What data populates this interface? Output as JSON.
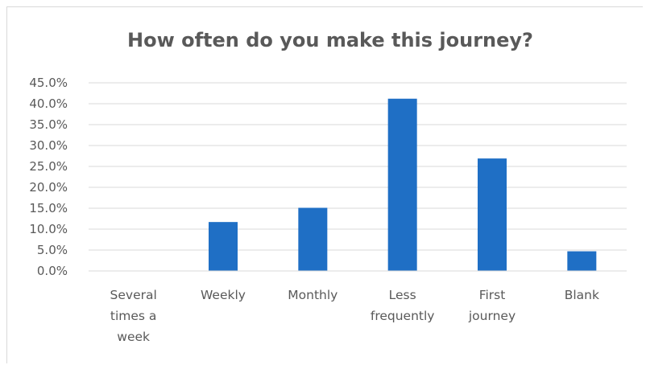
{
  "chart_data": {
    "type": "bar",
    "title": "How often do you make this journey?",
    "categories": [
      [
        "Several",
        "times a",
        "week"
      ],
      [
        "Weekly"
      ],
      [
        "Monthly"
      ],
      [
        "Less",
        "frequently"
      ],
      [
        "First",
        "journey"
      ],
      [
        "Blank"
      ]
    ],
    "values": [
      0.0,
      11.7,
      15.1,
      41.2,
      26.9,
      4.7
    ],
    "ylim": [
      0,
      45
    ],
    "yticks": [
      "0.0%",
      "5.0%",
      "10.0%",
      "15.0%",
      "20.0%",
      "25.0%",
      "30.0%",
      "35.0%",
      "40.0%",
      "45.0%"
    ],
    "ytick_values": [
      0,
      5,
      10,
      15,
      20,
      25,
      30,
      35,
      40,
      45
    ],
    "grid": true,
    "legend": "none",
    "bar_color": "#1f6fc5"
  }
}
